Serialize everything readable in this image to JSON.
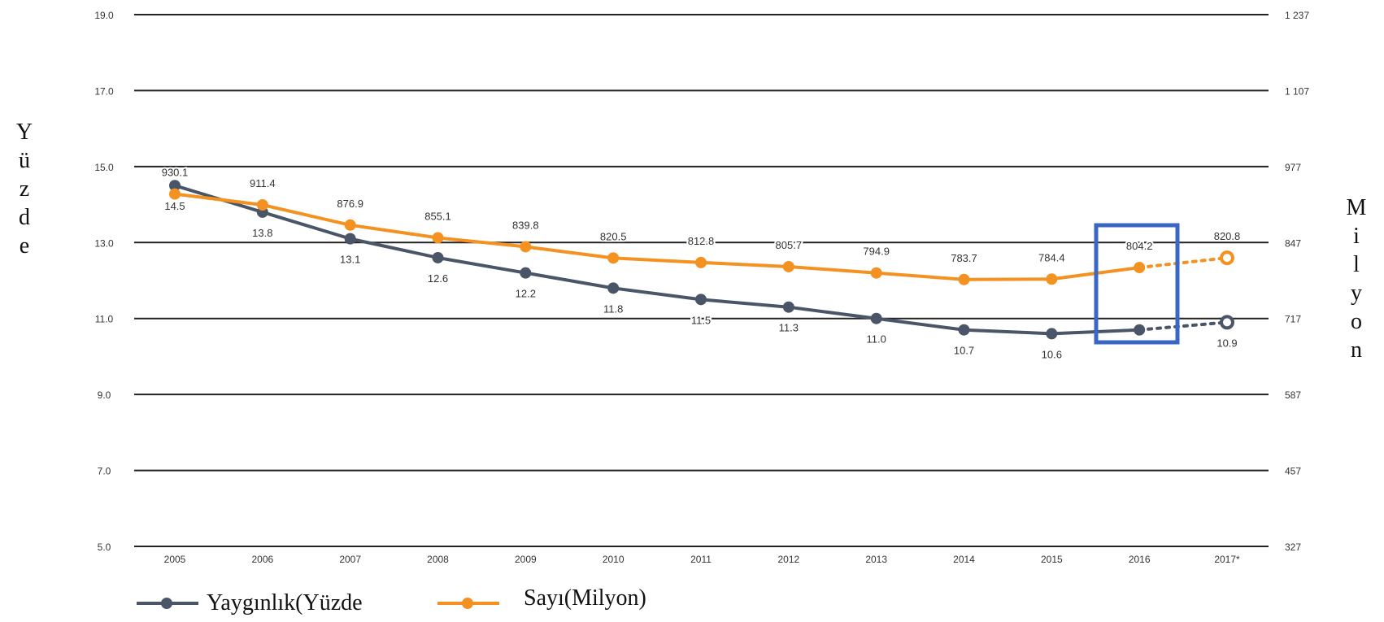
{
  "chart_data": {
    "type": "line",
    "categories": [
      "2005",
      "2006",
      "2007",
      "2008",
      "2009",
      "2010",
      "2011",
      "2012",
      "2013",
      "2014",
      "2015",
      "2016",
      "2017*"
    ],
    "y_left": {
      "title": "Yüzde",
      "ticks": [
        "19.0",
        "17.0",
        "15.0",
        "13.0",
        "11.0",
        "9.0",
        "7.0",
        "5.0"
      ],
      "range": [
        5,
        19
      ]
    },
    "y_right": {
      "title": "Milyon",
      "ticks": [
        "1 237",
        "1 107",
        "977",
        "847",
        "717",
        "587",
        "457",
        "327"
      ],
      "range": [
        327,
        1237
      ]
    },
    "series": [
      {
        "name": "Yaygınlık(Yüzde",
        "axis": "left",
        "color": "#4a5668",
        "values": [
          14.5,
          13.8,
          13.1,
          12.6,
          12.2,
          11.8,
          11.5,
          11.3,
          11.0,
          10.7,
          10.6,
          10.7,
          10.9
        ],
        "labels": [
          "14.5",
          "13.8",
          "13.1",
          "12.6",
          "12.2",
          "11.8",
          "11.5",
          "11.3",
          "11.0",
          "10.7",
          "10.6",
          "",
          "10.9"
        ],
        "projected_from_index": 11
      },
      {
        "name": "Sayı(Milyon)",
        "axis": "right",
        "color": "#f39221",
        "values": [
          930.1,
          911.4,
          876.9,
          855.1,
          839.8,
          820.5,
          812.8,
          805.7,
          794.9,
          783.7,
          784.4,
          804.2,
          820.8
        ],
        "labels": [
          "930.1",
          "911.4",
          "876.9",
          "855.1",
          "839.8",
          "820.5",
          "812.8",
          "805.7",
          "794.9",
          "783.7",
          "784.4",
          "804.2",
          "820.8"
        ],
        "projected_from_index": 11
      }
    ],
    "highlight_box_color": "#3a66c4",
    "grid": true,
    "legend_position": "bottom-left"
  }
}
